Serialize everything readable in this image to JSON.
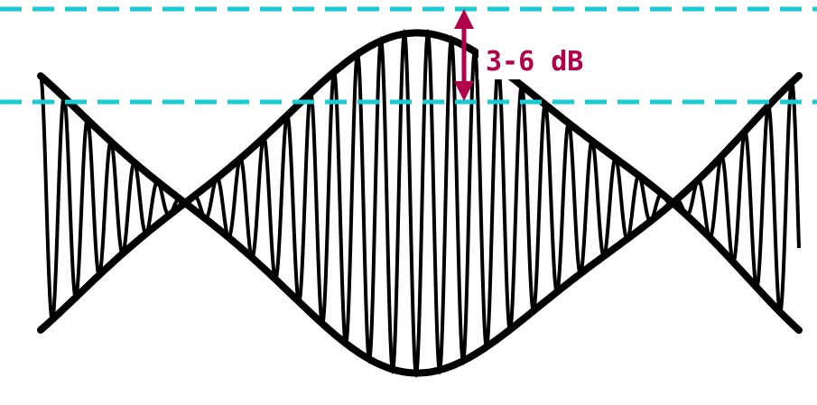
{
  "annotation": {
    "label": "3-6 dB"
  }
}
